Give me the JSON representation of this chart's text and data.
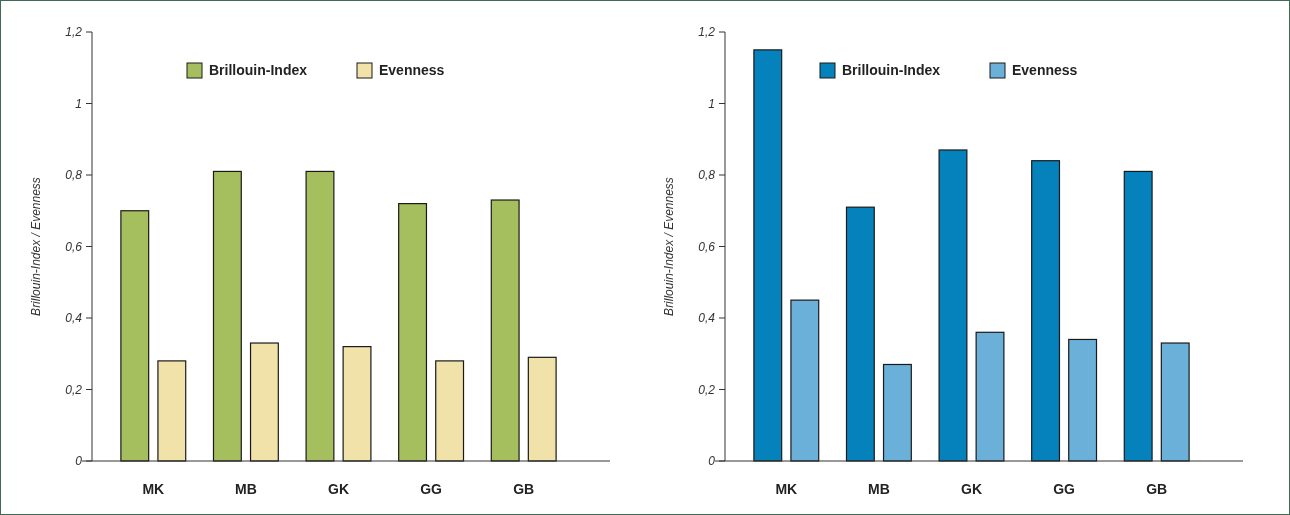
{
  "chart_data": [
    {
      "type": "bar",
      "ylabel": "Brillouin-Index / Evenness",
      "categories": [
        "MK",
        "MB",
        "GK",
        "GG",
        "GB"
      ],
      "series": [
        {
          "name": "Brillouin-Index",
          "color": "#a5bf5e",
          "values": [
            0.7,
            0.81,
            0.81,
            0.72,
            0.73
          ]
        },
        {
          "name": "Evenness",
          "color": "#f0e2a8",
          "values": [
            0.28,
            0.33,
            0.32,
            0.28,
            0.29
          ]
        }
      ],
      "ylim": [
        0,
        1.2
      ],
      "yticks": [
        {
          "value": 0,
          "label": "0"
        },
        {
          "value": 0.2,
          "label": "0,2"
        },
        {
          "value": 0.4,
          "label": "0,4"
        },
        {
          "value": 0.6,
          "label": "0,6"
        },
        {
          "value": 0.8,
          "label": "0,8"
        },
        {
          "value": 1,
          "label": "1"
        },
        {
          "value": 1.2,
          "label": "1,2"
        }
      ],
      "legend": "top",
      "grid": false
    },
    {
      "type": "bar",
      "ylabel": "Brillouin-Index / Evenness",
      "categories": [
        "MK",
        "MB",
        "GK",
        "GG",
        "GB"
      ],
      "series": [
        {
          "name": "Brillouin-Index",
          "color": "#0582bb",
          "values": [
            1.15,
            0.71,
            0.87,
            0.84,
            0.81
          ]
        },
        {
          "name": "Evenness",
          "color": "#6ab0d8",
          "values": [
            0.45,
            0.27,
            0.36,
            0.34,
            0.33
          ]
        }
      ],
      "ylim": [
        0,
        1.2
      ],
      "yticks": [
        {
          "value": 0,
          "label": "0"
        },
        {
          "value": 0.2,
          "label": "0,2"
        },
        {
          "value": 0.4,
          "label": "0,4"
        },
        {
          "value": 0.6,
          "label": "0,6"
        },
        {
          "value": 0.8,
          "label": "0,8"
        },
        {
          "value": 1,
          "label": "1"
        },
        {
          "value": 1.2,
          "label": "1,2"
        }
      ],
      "legend": "top",
      "grid": false
    }
  ]
}
